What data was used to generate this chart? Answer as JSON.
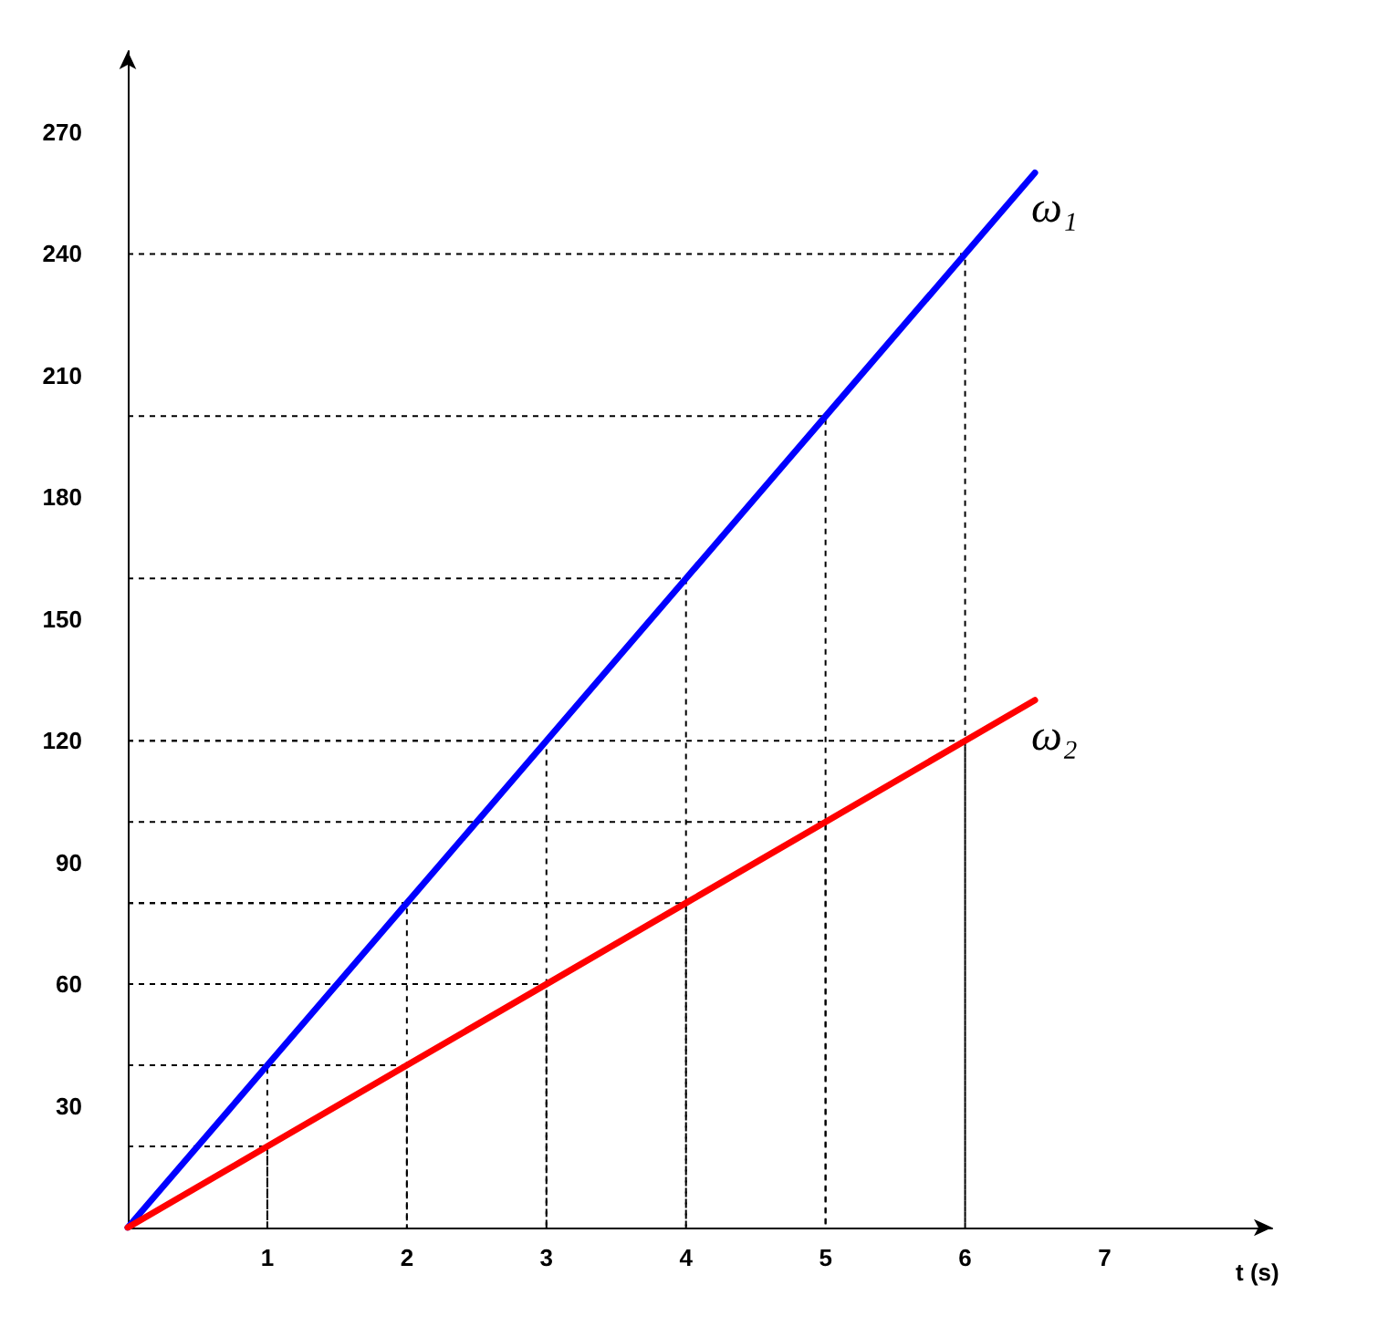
{
  "chart_data": {
    "type": "line",
    "xlabel": "t (s)",
    "x": [
      0,
      1,
      2,
      3,
      4,
      5,
      6,
      6.5
    ],
    "series": [
      {
        "name": "ω₁",
        "color": "#0000ff",
        "values": [
          0,
          40,
          80,
          120,
          160,
          200,
          240,
          260
        ]
      },
      {
        "name": "ω₂",
        "color": "#ff0000",
        "values": [
          0,
          20,
          40,
          60,
          80,
          100,
          120,
          130
        ]
      },
      {
        "color": "#000000",
        "line_style": "dashed",
        "x": [
          0,
          1,
          1
        ],
        "values": [
          40,
          40,
          0
        ]
      },
      {
        "color": "#000000",
        "line_style": "dashed",
        "x": [
          0,
          2,
          2
        ],
        "values": [
          80,
          80,
          0
        ]
      },
      {
        "color": "#000000",
        "line_style": "dashed",
        "x": [
          0,
          3,
          3
        ],
        "values": [
          120,
          120,
          0
        ]
      },
      {
        "color": "#000000",
        "line_style": "dashed",
        "x": [
          0,
          4,
          4
        ],
        "values": [
          160,
          160,
          0
        ]
      },
      {
        "color": "#000000",
        "line_style": "dashed",
        "x": [
          0,
          5,
          5
        ],
        "values": [
          200,
          200,
          0
        ]
      },
      {
        "color": "#000000",
        "line_style": "dashed",
        "x": [
          0,
          6,
          6
        ],
        "values": [
          240,
          240,
          0
        ]
      },
      {
        "color": "#000000",
        "line_style": "dashed",
        "x": [
          0,
          1,
          1
        ],
        "values": [
          20,
          20,
          0
        ]
      },
      {
        "color": "#000000",
        "line_style": "dashed",
        "x": [
          0,
          2,
          2
        ],
        "values": [
          40,
          40,
          0
        ]
      },
      {
        "color": "#000000",
        "line_style": "dashed",
        "x": [
          0,
          3,
          3
        ],
        "values": [
          60,
          60,
          0
        ]
      },
      {
        "color": "#000000",
        "line_style": "dashed",
        "x": [
          0,
          4,
          4
        ],
        "values": [
          80,
          80,
          0
        ]
      },
      {
        "color": "#000000",
        "line_style": "dashed",
        "x": [
          0,
          5,
          5
        ],
        "values": [
          100,
          100,
          0
        ]
      },
      {
        "color": "#000000",
        "line_style": "dashed",
        "x": [
          0,
          6,
          6
        ],
        "values": [
          120,
          120,
          0
        ]
      }
    ],
    "xlim": [
      0,
      8.2
    ],
    "xticks": [
      1,
      2,
      3,
      4,
      5,
      6,
      7
    ],
    "ylim": [
      0,
      290
    ],
    "yticks": [
      30,
      60,
      90,
      120,
      150,
      180,
      210,
      240,
      270
    ],
    "marker": "none",
    "line_style": "solid"
  }
}
